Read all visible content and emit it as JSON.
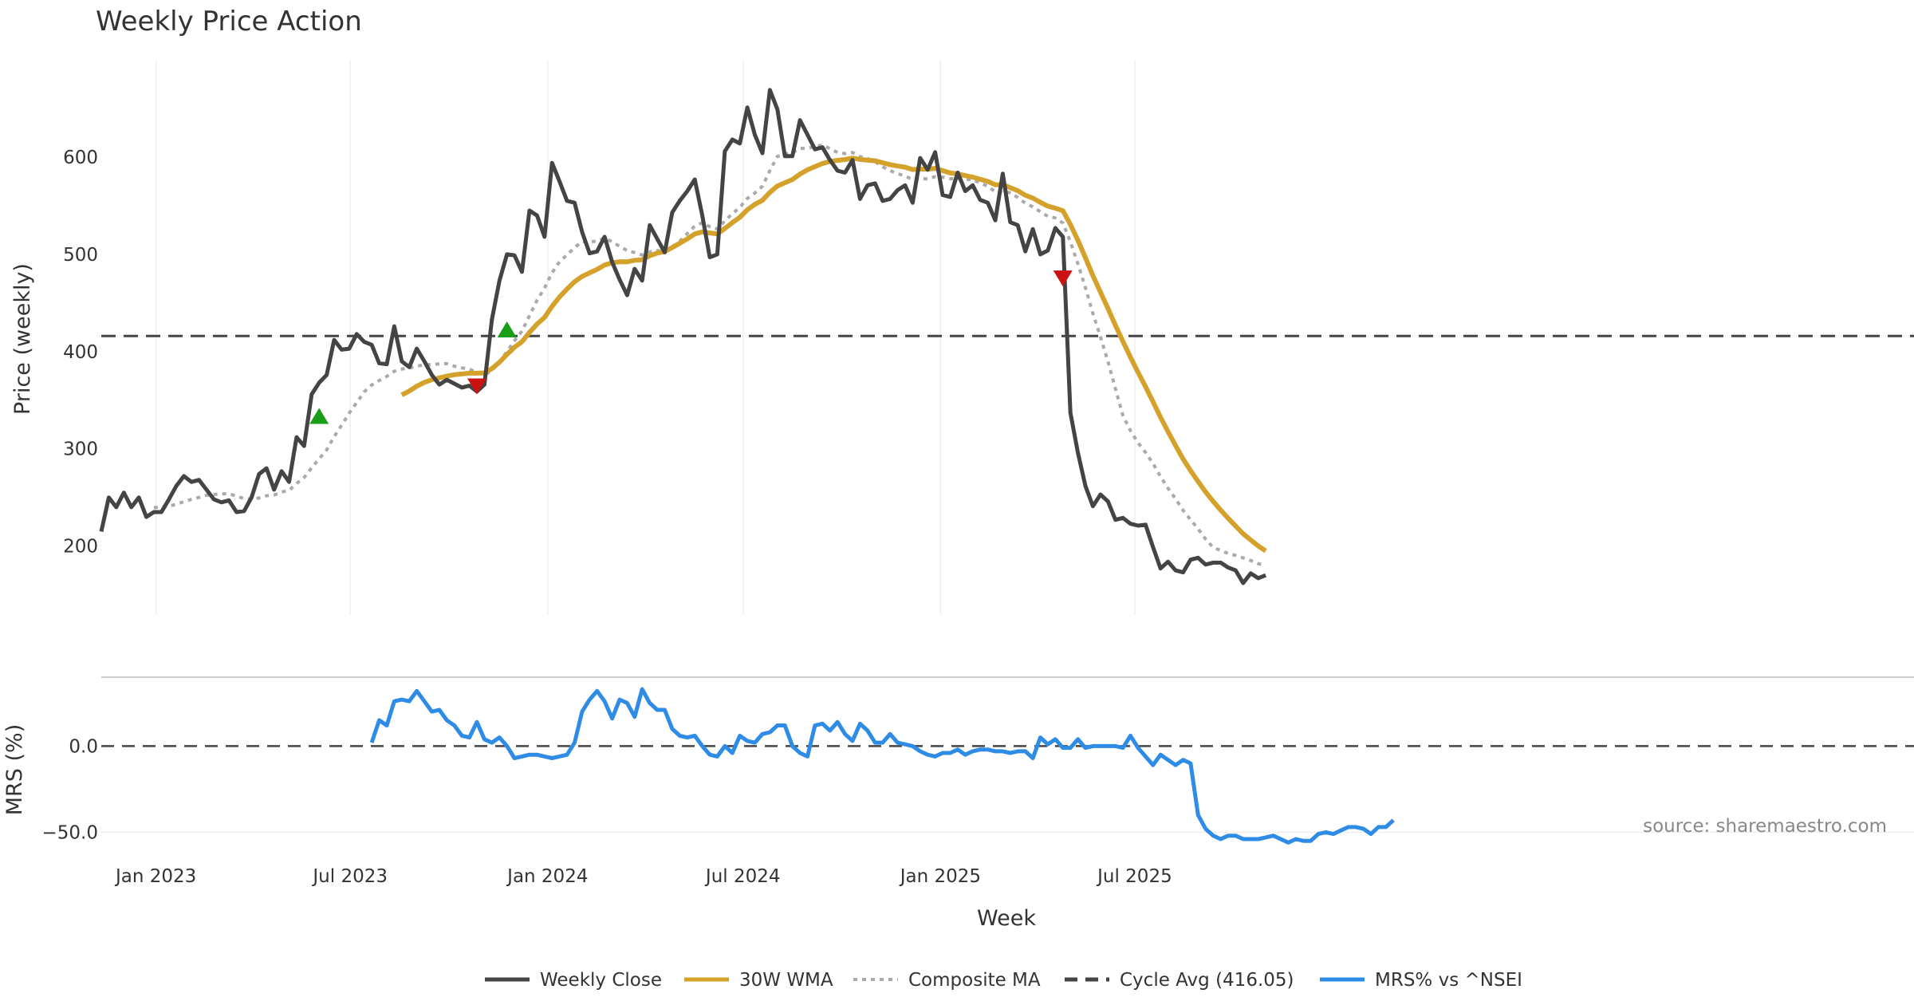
{
  "chart_data": [
    {
      "type": "line",
      "title": "Weekly Price Action",
      "ylabel": "Price (weekly)",
      "ylim": [
        130,
        700
      ],
      "yticks": [
        "200",
        "300",
        "400",
        "500",
        "600"
      ],
      "grid": "vertical",
      "start_date": "2022-11-11",
      "series": [
        {
          "name": "Weekly Close",
          "color": "#444444",
          "style": "solid",
          "values": [
            215,
            250,
            240,
            255,
            240,
            250,
            230,
            235,
            235,
            248,
            262,
            272,
            266,
            268,
            258,
            248,
            245,
            247,
            235,
            236,
            250,
            274,
            280,
            258,
            277,
            266,
            312,
            303,
            356,
            368,
            376,
            412,
            402,
            403,
            418,
            410,
            407,
            388,
            387,
            426,
            390,
            384,
            403,
            390,
            376,
            366,
            371,
            367,
            363,
            365,
            359,
            366,
            433,
            473,
            500,
            499,
            482,
            545,
            540,
            518,
            594,
            575,
            555,
            553,
            523,
            501,
            503,
            518,
            492,
            474,
            458,
            485,
            473,
            530,
            516,
            502,
            543,
            555,
            565,
            577,
            540,
            497,
            500,
            606,
            618,
            614,
            651,
            623,
            604,
            669,
            649,
            601,
            601,
            638,
            623,
            608,
            610,
            597,
            586,
            584,
            597,
            557,
            571,
            573,
            555,
            557,
            566,
            571,
            553,
            599,
            587,
            605,
            561,
            559,
            584,
            565,
            571,
            556,
            553,
            535,
            583,
            533,
            530,
            503,
            526,
            500,
            504,
            527,
            518,
            337,
            296,
            262,
            241,
            253,
            246,
            227,
            229,
            223,
            221,
            222,
            199,
            177,
            184,
            175,
            173,
            186,
            188,
            181,
            183,
            183,
            178,
            175,
            162,
            172,
            167,
            170
          ]
        },
        {
          "name": "30W WMA",
          "color": "#D4A12A",
          "style": "solid",
          "values": [
            null,
            null,
            null,
            null,
            null,
            null,
            null,
            null,
            null,
            null,
            null,
            null,
            null,
            null,
            null,
            null,
            null,
            null,
            null,
            null,
            null,
            null,
            null,
            null,
            null,
            null,
            null,
            null,
            null,
            null,
            null,
            null,
            null,
            null,
            null,
            null,
            null,
            null,
            null,
            null,
            null,
            null,
            null,
            null,
            null,
            null,
            null,
            null,
            null,
            null,
            null,
            null,
            null,
            null,
            null,
            null,
            null,
            null,
            null,
            null,
            null,
            null,
            null,
            null,
            null,
            null,
            null,
            null,
            null,
            null,
            null,
            null,
            null,
            null,
            null,
            null,
            null,
            null,
            null,
            null,
            null,
            null,
            null,
            null,
            null,
            null,
            null,
            null,
            null,
            null,
            null,
            null,
            null,
            null,
            null,
            null,
            null,
            null,
            null,
            null,
            null,
            null,
            null,
            null,
            null,
            null,
            null,
            null,
            null,
            null,
            null,
            null,
            null,
            null,
            null,
            null,
            null,
            null,
            null,
            null,
            null,
            null,
            null,
            null,
            null,
            null,
            null,
            null,
            null,
            null,
            null,
            null,
            null,
            null,
            null,
            null,
            null,
            null,
            null,
            null,
            null,
            null,
            null,
            null,
            null,
            null,
            null,
            null,
            null,
            null,
            null,
            null,
            null,
            null,
            null,
            null,
            null,
            null
          ]
        },
        {
          "name": "Composite MA",
          "color": "#AAAAAA",
          "style": "dotted",
          "values": []
        },
        {
          "name": "Cycle Avg (416.05)",
          "color": "#444444",
          "style": "dashed",
          "values": [
            416.05
          ]
        }
      ],
      "markers": {
        "up": [
          {
            "x": "2023-06-02",
            "y": 333
          },
          {
            "x": "2023-11-24",
            "y": 422
          }
        ],
        "down": [
          {
            "x": "2023-10-27",
            "y": 365
          },
          {
            "x": "2025-04-25",
            "y": 476
          }
        ]
      }
    },
    {
      "type": "line",
      "ylabel": "MRS (%)",
      "ylim": [
        -60,
        40
      ],
      "yticks": [
        "0.0",
        "−50.0"
      ],
      "xlabel": "Week",
      "xticks": [
        "Jan 2023",
        "Jul 2023",
        "Jan 2024",
        "Jul 2024",
        "Jan 2025",
        "Jul 2025"
      ],
      "series": [
        {
          "name": "MRS% vs ^NSEI",
          "color": "#2E8BE6",
          "style": "solid",
          "values": [
            2,
            15,
            12,
            26,
            27,
            26,
            32,
            26,
            20,
            21,
            15,
            12,
            6,
            5,
            14,
            4,
            2,
            5,
            0,
            -7,
            -6,
            -5,
            -5,
            -6,
            -7,
            -6,
            -5,
            2,
            20,
            27,
            32,
            26,
            16,
            27,
            25,
            17,
            33,
            25,
            21,
            21,
            10,
            6,
            5,
            6,
            0,
            -5,
            -6,
            0,
            -4,
            6,
            3,
            2,
            7,
            8,
            12,
            12,
            0,
            -4,
            -6,
            12,
            13,
            9,
            14,
            7,
            3,
            13,
            9,
            2,
            2,
            7,
            2,
            1,
            0,
            -3,
            -5,
            -6,
            -4,
            -4,
            -2,
            -5,
            -3,
            -2,
            -2,
            -3,
            -3,
            -4,
            -3,
            -3,
            -7,
            5,
            1,
            4,
            -1,
            -1,
            4,
            -1,
            0,
            0,
            0,
            0,
            -1,
            6,
            -1,
            -6,
            -11,
            -5,
            -8,
            -11,
            -8,
            -10,
            -40,
            -48,
            -52,
            -54,
            -52,
            -52,
            -54,
            -54,
            -54,
            -53,
            -52,
            -54,
            -56,
            -54,
            -55,
            -55,
            -51,
            -50,
            -51,
            -49,
            -47,
            -47,
            -48,
            -51,
            -47,
            -47,
            -43
          ]
        }
      ]
    }
  ],
  "legend": [
    {
      "label": "Weekly Close",
      "color": "#444444",
      "style": "solid"
    },
    {
      "label": "30W WMA",
      "color": "#D4A12A",
      "style": "solid"
    },
    {
      "label": "Composite MA",
      "color": "#AAAAAA",
      "style": "dotted"
    },
    {
      "label": "Cycle Avg (416.05)",
      "color": "#444444",
      "style": "dashed"
    },
    {
      "label": "MRS% vs ^NSEI",
      "color": "#2E8BE6",
      "style": "solid"
    }
  ],
  "legend_placement": "bottom-center",
  "source": "source: sharemaestro.com"
}
